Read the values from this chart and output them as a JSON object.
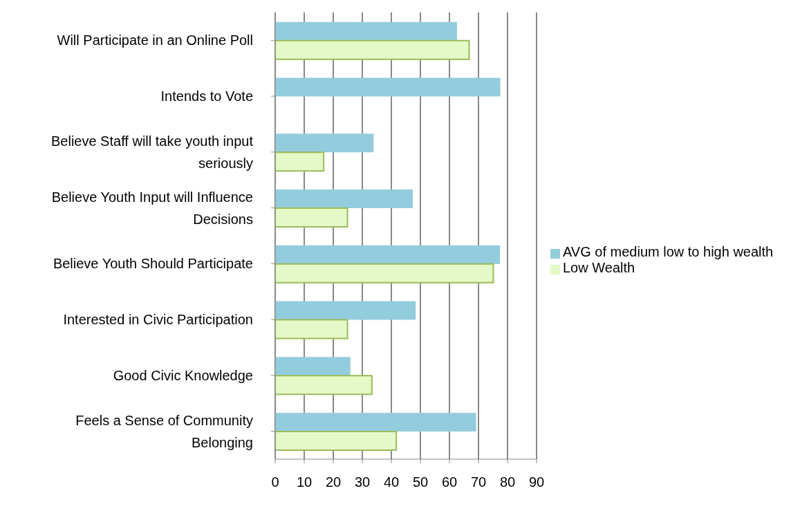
{
  "chart_data": {
    "type": "bar",
    "orientation": "horizontal",
    "categories": [
      "Will Participate in an Online Poll",
      "Intends to Vote",
      "Believe Staff will take youth input seriously",
      "Believe Youth Input will Influence Decisions",
      "Believe Youth Should Participate",
      "Interested in Civic Participation",
      "Good Civic Knowledge",
      "Feels a Sense of Community Belonging"
    ],
    "series": [
      {
        "name": "AVG of medium low to high wealth",
        "color": "#93cddd",
        "values": [
          62.6,
          77.5,
          33.9,
          47.4,
          77.4,
          48.4,
          25.9,
          69.2
        ]
      },
      {
        "name": "Low Wealth",
        "color": "#e4f8c8",
        "values": [
          66.8,
          null,
          16.7,
          24.9,
          75.1,
          24.9,
          33.3,
          41.7
        ]
      }
    ],
    "xlim": [
      0,
      90
    ],
    "xticks": [
      0,
      10,
      20,
      30,
      40,
      50,
      60,
      70,
      80,
      90
    ],
    "grid": "x",
    "legend": "right"
  }
}
